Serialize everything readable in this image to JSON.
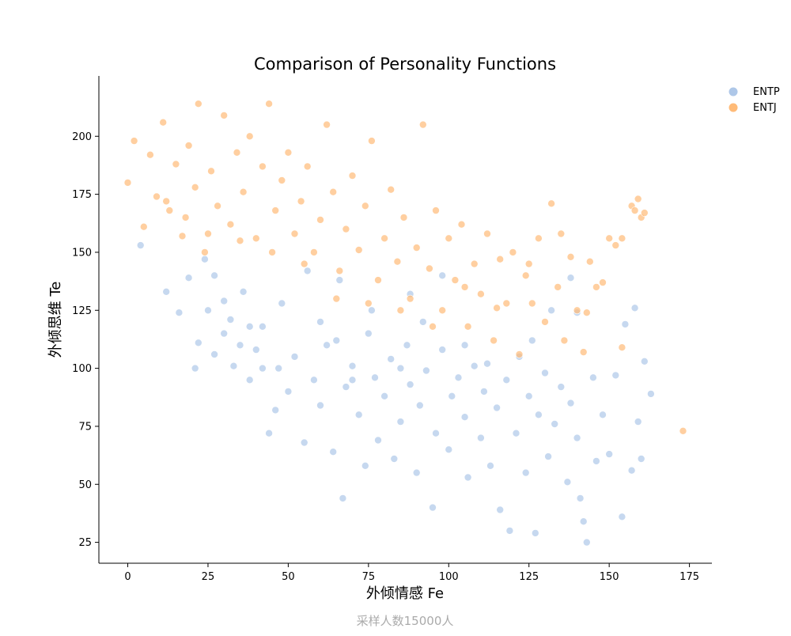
{
  "chart_data": {
    "type": "scatter",
    "title": "Comparison of Personality Functions",
    "xlabel": "外倾情感 Fe",
    "ylabel": "外倾思维 Te",
    "footnote": "采样人数15000人",
    "xlim": [
      -9,
      182
    ],
    "ylim": [
      16,
      226
    ],
    "xticks": [
      0,
      25,
      50,
      75,
      100,
      125,
      150,
      175
    ],
    "yticks": [
      25,
      50,
      75,
      100,
      125,
      150,
      175,
      200
    ],
    "grid": false,
    "legend_position": "top-right",
    "series": [
      {
        "name": "ENTP",
        "color": "#aec7e8",
        "points": [
          [
            4,
            153
          ],
          [
            12,
            133
          ],
          [
            16,
            124
          ],
          [
            21,
            100
          ],
          [
            22,
            111
          ],
          [
            25,
            125
          ],
          [
            27,
            140
          ],
          [
            30,
            129
          ],
          [
            32,
            121
          ],
          [
            35,
            110
          ],
          [
            38,
            95
          ],
          [
            40,
            108
          ],
          [
            42,
            118
          ],
          [
            44,
            72
          ],
          [
            46,
            82
          ],
          [
            47,
            100
          ],
          [
            50,
            90
          ],
          [
            52,
            105
          ],
          [
            55,
            68
          ],
          [
            58,
            95
          ],
          [
            60,
            84
          ],
          [
            62,
            110
          ],
          [
            64,
            64
          ],
          [
            67,
            44
          ],
          [
            68,
            92
          ],
          [
            70,
            101
          ],
          [
            72,
            80
          ],
          [
            74,
            58
          ],
          [
            75,
            115
          ],
          [
            77,
            96
          ],
          [
            78,
            69
          ],
          [
            80,
            88
          ],
          [
            82,
            104
          ],
          [
            83,
            61
          ],
          [
            85,
            77
          ],
          [
            87,
            110
          ],
          [
            88,
            93
          ],
          [
            90,
            55
          ],
          [
            91,
            84
          ],
          [
            93,
            99
          ],
          [
            95,
            40
          ],
          [
            96,
            72
          ],
          [
            98,
            108
          ],
          [
            100,
            65
          ],
          [
            101,
            88
          ],
          [
            103,
            96
          ],
          [
            105,
            79
          ],
          [
            106,
            53
          ],
          [
            108,
            101
          ],
          [
            110,
            70
          ],
          [
            111,
            90
          ],
          [
            113,
            58
          ],
          [
            115,
            83
          ],
          [
            116,
            39
          ],
          [
            118,
            95
          ],
          [
            119,
            30
          ],
          [
            121,
            72
          ],
          [
            122,
            105
          ],
          [
            124,
            55
          ],
          [
            125,
            88
          ],
          [
            127,
            29
          ],
          [
            128,
            80
          ],
          [
            130,
            98
          ],
          [
            131,
            62
          ],
          [
            133,
            76
          ],
          [
            135,
            92
          ],
          [
            137,
            51
          ],
          [
            138,
            85
          ],
          [
            140,
            70
          ],
          [
            141,
            44
          ],
          [
            142,
            34
          ],
          [
            143,
            25
          ],
          [
            145,
            96
          ],
          [
            146,
            60
          ],
          [
            148,
            80
          ],
          [
            150,
            63
          ],
          [
            152,
            97
          ],
          [
            154,
            36
          ],
          [
            155,
            119
          ],
          [
            157,
            56
          ],
          [
            158,
            126
          ],
          [
            159,
            77
          ],
          [
            160,
            61
          ],
          [
            161,
            103
          ],
          [
            163,
            89
          ],
          [
            60,
            120
          ],
          [
            65,
            112
          ],
          [
            70,
            95
          ],
          [
            85,
            100
          ],
          [
            92,
            120
          ],
          [
            105,
            110
          ],
          [
            112,
            102
          ],
          [
            126,
            112
          ],
          [
            132,
            125
          ],
          [
            138,
            139
          ],
          [
            140,
            124
          ],
          [
            98,
            140
          ],
          [
            88,
            132
          ],
          [
            76,
            125
          ],
          [
            66,
            138
          ],
          [
            56,
            142
          ],
          [
            48,
            128
          ],
          [
            42,
            100
          ],
          [
            36,
            133
          ],
          [
            30,
            115
          ],
          [
            24,
            147
          ],
          [
            19,
            139
          ],
          [
            27,
            106
          ],
          [
            33,
            101
          ],
          [
            38,
            118
          ]
        ]
      },
      {
        "name": "ENTJ",
        "color": "#ffbb78",
        "points": [
          [
            0,
            180
          ],
          [
            2,
            198
          ],
          [
            5,
            161
          ],
          [
            7,
            192
          ],
          [
            9,
            174
          ],
          [
            11,
            206
          ],
          [
            13,
            168
          ],
          [
            15,
            188
          ],
          [
            17,
            157
          ],
          [
            19,
            196
          ],
          [
            21,
            178
          ],
          [
            22,
            214
          ],
          [
            24,
            150
          ],
          [
            26,
            185
          ],
          [
            28,
            170
          ],
          [
            30,
            209
          ],
          [
            32,
            162
          ],
          [
            34,
            193
          ],
          [
            36,
            176
          ],
          [
            38,
            200
          ],
          [
            40,
            156
          ],
          [
            42,
            187
          ],
          [
            44,
            214
          ],
          [
            46,
            168
          ],
          [
            48,
            181
          ],
          [
            50,
            193
          ],
          [
            52,
            158
          ],
          [
            54,
            172
          ],
          [
            56,
            187
          ],
          [
            58,
            150
          ],
          [
            60,
            164
          ],
          [
            62,
            205
          ],
          [
            64,
            176
          ],
          [
            66,
            142
          ],
          [
            68,
            160
          ],
          [
            70,
            183
          ],
          [
            72,
            151
          ],
          [
            74,
            170
          ],
          [
            76,
            198
          ],
          [
            78,
            138
          ],
          [
            80,
            156
          ],
          [
            82,
            177
          ],
          [
            84,
            146
          ],
          [
            86,
            165
          ],
          [
            88,
            130
          ],
          [
            90,
            152
          ],
          [
            92,
            205
          ],
          [
            94,
            143
          ],
          [
            96,
            168
          ],
          [
            98,
            125
          ],
          [
            100,
            156
          ],
          [
            102,
            138
          ],
          [
            104,
            162
          ],
          [
            106,
            118
          ],
          [
            108,
            145
          ],
          [
            110,
            132
          ],
          [
            112,
            158
          ],
          [
            114,
            112
          ],
          [
            116,
            147
          ],
          [
            118,
            128
          ],
          [
            120,
            150
          ],
          [
            122,
            106
          ],
          [
            124,
            140
          ],
          [
            126,
            128
          ],
          [
            128,
            156
          ],
          [
            130,
            120
          ],
          [
            132,
            171
          ],
          [
            134,
            135
          ],
          [
            136,
            112
          ],
          [
            138,
            148
          ],
          [
            140,
            125
          ],
          [
            142,
            107
          ],
          [
            143,
            124
          ],
          [
            144,
            146
          ],
          [
            146,
            135
          ],
          [
            148,
            137
          ],
          [
            150,
            156
          ],
          [
            152,
            153
          ],
          [
            154,
            156
          ],
          [
            154,
            109
          ],
          [
            157,
            170
          ],
          [
            158,
            168
          ],
          [
            159,
            173
          ],
          [
            160,
            165
          ],
          [
            161,
            167
          ],
          [
            173,
            73
          ],
          [
            12,
            172
          ],
          [
            18,
            165
          ],
          [
            25,
            158
          ],
          [
            35,
            155
          ],
          [
            45,
            150
          ],
          [
            55,
            145
          ],
          [
            65,
            130
          ],
          [
            75,
            128
          ],
          [
            85,
            125
          ],
          [
            95,
            118
          ],
          [
            105,
            135
          ],
          [
            115,
            126
          ],
          [
            125,
            145
          ],
          [
            135,
            158
          ]
        ]
      }
    ]
  }
}
